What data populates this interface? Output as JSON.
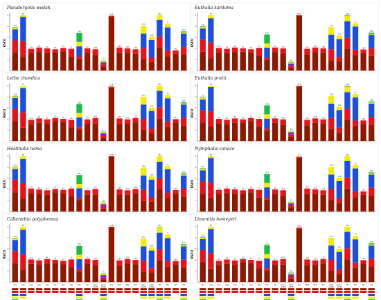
{
  "figure": {
    "amino_acids": [
      "Ala",
      "Arg",
      "Asn",
      "Asp",
      "Cys",
      "Gln",
      "Glu",
      "Gly",
      "His",
      "Ile",
      "Leu1",
      "Leu2",
      "Lys",
      "Met",
      "Phe",
      "Pro",
      "Ser1",
      "Ser2",
      "Thr",
      "Trp",
      "Tyr",
      "Val"
    ],
    "amino_acid_sublabels": [
      "",
      "",
      "",
      "",
      "",
      "",
      "",
      "",
      "",
      "",
      "(CUN)",
      "(UUR)",
      "",
      "",
      "",
      "",
      "(AGN)",
      "(UCN)",
      "",
      "",
      "",
      ""
    ],
    "colors": {
      "codon1": "#8b1a00",
      "codon2": "#e3151c",
      "codon3": "#1e4fd6",
      "codon4": "#f2ea12",
      "extra": "#22b84b",
      "extra2": "#6a2cc1"
    },
    "y_axis_label": "RSCU",
    "y_ticks": [
      "1",
      "2",
      "3",
      "4",
      "5"
    ]
  },
  "chart_data": [
    {
      "type": "bar",
      "title": "Pseudergolis wedah",
      "ylabel": "RSCU",
      "ylim": [
        0,
        5
      ],
      "categories": [
        "Ala",
        "Arg",
        "Asn",
        "Asp",
        "Cys",
        "Gln",
        "Glu",
        "Gly",
        "His",
        "Ile",
        "Leu1",
        "Leu2",
        "Lys",
        "Met",
        "Phe",
        "Pro",
        "Ser1",
        "Ser2",
        "Thr",
        "Trp",
        "Tyr",
        "Val"
      ],
      "data_labels": [
        "125",
        "95",
        "209",
        "62",
        "88",
        "58",
        "55",
        "71",
        "286",
        "47",
        "404",
        "49",
        "576",
        "260",
        "243",
        "195",
        "270",
        "124",
        "234",
        "71",
        "145",
        "183"
      ]
    },
    {
      "type": "bar",
      "title": "Euthalia kardama",
      "ylabel": "RSCU",
      "ylim": [
        0,
        5
      ],
      "categories": [
        "Ala",
        "Arg",
        "Asn",
        "Asp",
        "Cys",
        "Gln",
        "Glu",
        "Gly",
        "His",
        "Ile",
        "Leu1",
        "Leu2",
        "Lys",
        "Met",
        "Phe",
        "Pro",
        "Ser1",
        "Ser2",
        "Thr",
        "Trp",
        "Tyr",
        "Val"
      ],
      "data_labels": [
        "135",
        "94",
        "221",
        "64",
        "82",
        "61",
        "53",
        "72",
        "290",
        "49",
        "472",
        "48",
        "581",
        "262",
        "239",
        "188",
        "278",
        "121",
        "228",
        "72",
        "149",
        "190"
      ]
    },
    {
      "type": "bar",
      "title": "Lethe chandica",
      "ylabel": "RSCU",
      "ylim": [
        0,
        5
      ],
      "categories": [
        "Ala",
        "Arg",
        "Asn",
        "Asp",
        "Cys",
        "Gln",
        "Glu",
        "Gly",
        "His",
        "Ile",
        "Leu1",
        "Leu2",
        "Lys",
        "Met",
        "Phe",
        "Pro",
        "Ser1",
        "Ser2",
        "Thr",
        "Trp",
        "Tyr",
        "Val"
      ],
      "data_labels": [
        "128",
        "97",
        "214",
        "63",
        "86",
        "59",
        "54",
        "70",
        "288",
        "48",
        "455",
        "47",
        "578",
        "258",
        "241",
        "192",
        "273",
        "122",
        "230",
        "70",
        "147",
        "185"
      ]
    },
    {
      "type": "bar",
      "title": "Euthalia pratti",
      "ylabel": "RSCU",
      "ylim": [
        0,
        5
      ],
      "categories": [
        "Ala",
        "Arg",
        "Asn",
        "Asp",
        "Cys",
        "Gln",
        "Glu",
        "Gly",
        "His",
        "Ile",
        "Leu1",
        "Leu2",
        "Lys",
        "Met",
        "Phe",
        "Pro",
        "Ser1",
        "Ser2",
        "Thr",
        "Trp",
        "Tyr",
        "Val"
      ],
      "data_labels": [
        "133",
        "95",
        "218",
        "65",
        "83",
        "60",
        "52",
        "73",
        "289",
        "50",
        "468",
        "49",
        "579",
        "261",
        "240",
        "190",
        "276",
        "120",
        "229",
        "71",
        "148",
        "188"
      ]
    },
    {
      "type": "bar",
      "title": "Hestinalis nama",
      "ylabel": "RSCU",
      "ylim": [
        0,
        5
      ],
      "categories": [
        "Ala",
        "Arg",
        "Asn",
        "Asp",
        "Cys",
        "Gln",
        "Glu",
        "Gly",
        "His",
        "Ile",
        "Leu1",
        "Leu2",
        "Lys",
        "Met",
        "Phe",
        "Pro",
        "Ser1",
        "Ser2",
        "Thr",
        "Trp",
        "Tyr",
        "Val"
      ],
      "data_labels": [
        "127",
        "96",
        "211",
        "62",
        "87",
        "57",
        "56",
        "71",
        "285",
        "47",
        "471",
        "48",
        "575",
        "259",
        "244",
        "196",
        "269",
        "125",
        "233",
        "70",
        "146",
        "182"
      ]
    },
    {
      "type": "bar",
      "title": "Nymphalis canace",
      "ylabel": "RSCU",
      "ylim": [
        0,
        5
      ],
      "categories": [
        "Ala",
        "Arg",
        "Asn",
        "Asp",
        "Cys",
        "Gln",
        "Glu",
        "Gly",
        "His",
        "Ile",
        "Leu1",
        "Leu2",
        "Lys",
        "Met",
        "Phe",
        "Pro",
        "Ser1",
        "Ser2",
        "Thr",
        "Trp",
        "Tyr",
        "Val"
      ],
      "data_labels": [
        "130",
        "93",
        "216",
        "61",
        "85",
        "62",
        "53",
        "72",
        "287",
        "49",
        "474",
        "47",
        "577",
        "263",
        "242",
        "193",
        "274",
        "123",
        "231",
        "72",
        "150",
        "186"
      ]
    },
    {
      "type": "bar",
      "title": "Calleriebia polyphemus",
      "ylabel": "RSCU",
      "ylim": [
        0,
        5
      ],
      "categories": [
        "Ala",
        "Arg",
        "Asn",
        "Asp",
        "Cys",
        "Gln",
        "Glu",
        "Gly",
        "His",
        "Ile",
        "Leu1",
        "Leu2",
        "Lys",
        "Met",
        "Phe",
        "Pro",
        "Ser1",
        "Ser2",
        "Thr",
        "Trp",
        "Tyr",
        "Val"
      ],
      "data_labels": [
        "126",
        "96",
        "210",
        "63",
        "86",
        "58",
        "55",
        "70",
        "284",
        "48",
        "462",
        "49",
        "574",
        "257",
        "245",
        "194",
        "271",
        "124",
        "232",
        "71",
        "144",
        "184"
      ]
    },
    {
      "type": "bar",
      "title": "Limenitis homeyeri",
      "ylabel": "RSCU",
      "ylim": [
        0,
        5
      ],
      "categories": [
        "Ala",
        "Arg",
        "Asn",
        "Asp",
        "Cys",
        "Gln",
        "Glu",
        "Gly",
        "His",
        "Ile",
        "Leu1",
        "Leu2",
        "Lys",
        "Met",
        "Phe",
        "Pro",
        "Ser1",
        "Ser2",
        "Thr",
        "Trp",
        "Tyr",
        "Val"
      ],
      "data_labels": [
        "132",
        "94",
        "219",
        "64",
        "84",
        "60",
        "54",
        "73",
        "291",
        "50",
        "470",
        "48",
        "580",
        "264",
        "238",
        "191",
        "277",
        "121",
        "229",
        "70",
        "148",
        "189"
      ]
    }
  ]
}
